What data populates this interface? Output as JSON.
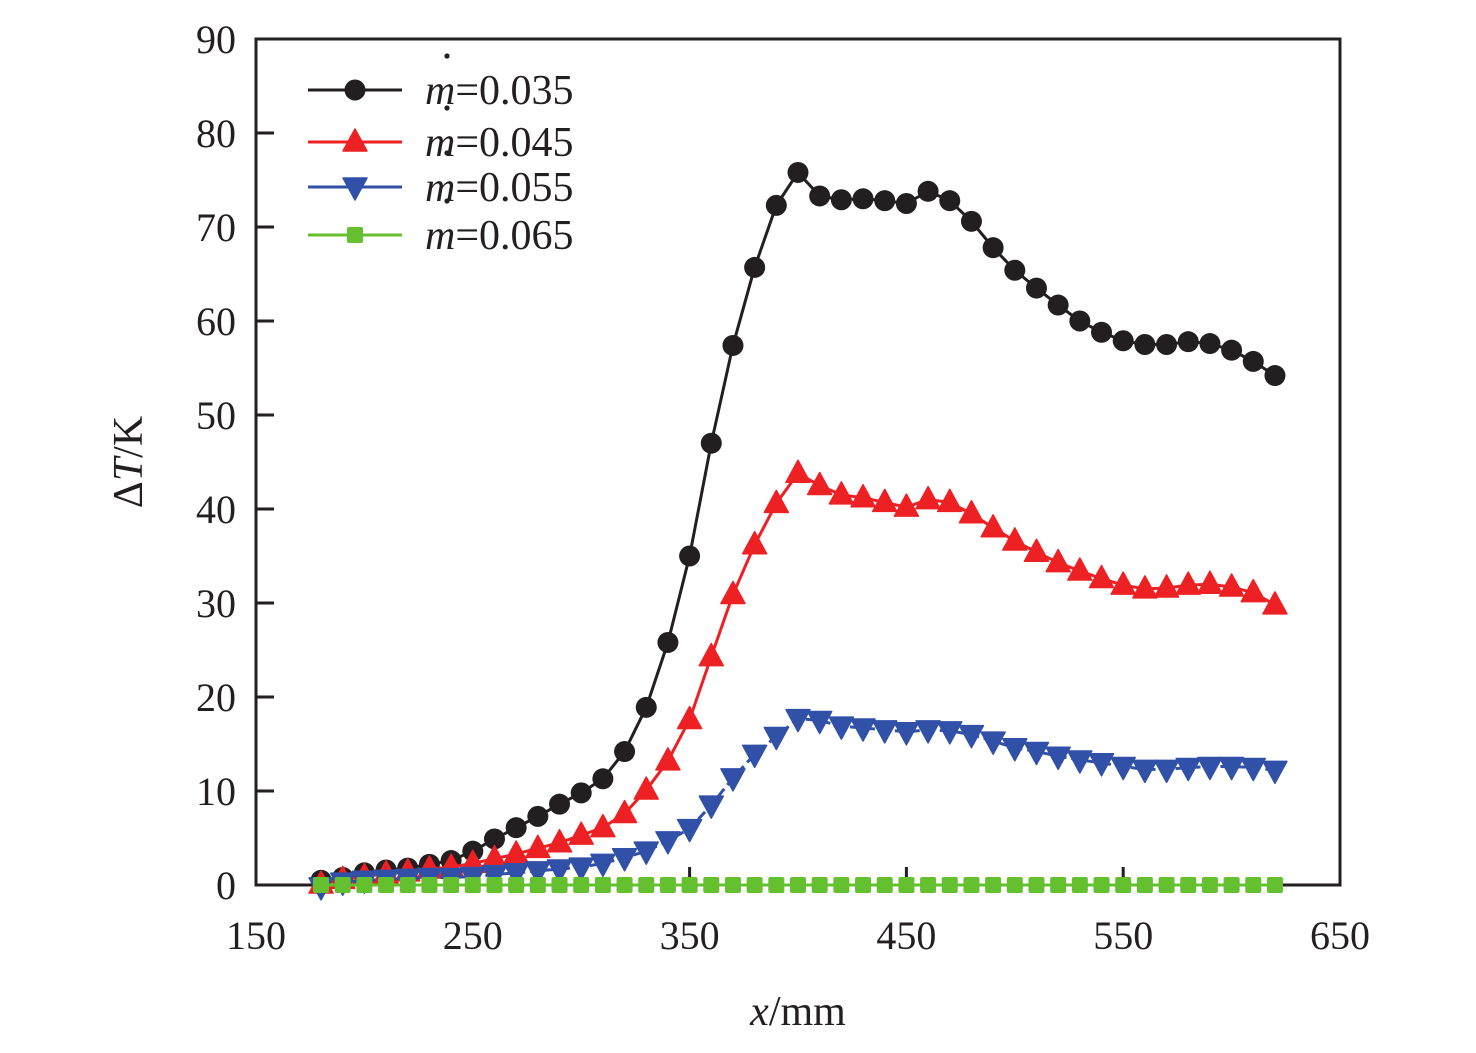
{
  "chart_data": {
    "type": "line",
    "title": "",
    "xlabel": {
      "var": "x",
      "unit": "/mm"
    },
    "ylabel": {
      "prefix": "Δ",
      "var": "T",
      "unit": "/K"
    },
    "xlim": [
      150,
      650
    ],
    "ylim": [
      0,
      90
    ],
    "xticks": [
      150,
      250,
      350,
      450,
      550,
      650
    ],
    "yticks": [
      0,
      10,
      20,
      30,
      40,
      50,
      60,
      70,
      80,
      90
    ],
    "grid": false,
    "legend_position": "top-left",
    "x": [
      180,
      190,
      200,
      210,
      220,
      230,
      240,
      250,
      260,
      270,
      280,
      290,
      300,
      310,
      320,
      330,
      340,
      350,
      360,
      370,
      380,
      390,
      400,
      410,
      420,
      430,
      440,
      450,
      460,
      470,
      480,
      490,
      500,
      510,
      520,
      530,
      540,
      550,
      560,
      570,
      580,
      590,
      600,
      610,
      620
    ],
    "series": [
      {
        "name": "m=0.035",
        "legend_var": "m",
        "legend_value": "=0.035",
        "color": "#231f20",
        "marker": "circle",
        "line": "solid",
        "values": [
          0.5,
          0.8,
          1.3,
          1.6,
          1.8,
          2.2,
          2.6,
          3.6,
          4.9,
          6.1,
          7.3,
          8.6,
          9.8,
          11.3,
          14.2,
          18.9,
          25.8,
          35.0,
          47.0,
          57.4,
          65.7,
          72.3,
          75.8,
          73.3,
          72.9,
          73.0,
          72.8,
          72.5,
          73.8,
          72.8,
          70.6,
          67.8,
          65.4,
          63.5,
          61.7,
          60.0,
          58.8,
          57.9,
          57.5,
          57.5,
          57.8,
          57.6,
          56.9,
          55.7,
          54.2
        ]
      },
      {
        "name": "m=0.045",
        "legend_var": "m",
        "legend_value": "=0.045",
        "color": "#ed2024",
        "marker": "triangle-up",
        "line": "solid",
        "values": [
          0.1,
          0.6,
          0.9,
          1.2,
          1.4,
          1.7,
          1.9,
          2.3,
          2.8,
          3.3,
          3.9,
          4.5,
          5.3,
          6.1,
          7.6,
          10.1,
          13.2,
          17.6,
          24.3,
          30.9,
          36.2,
          40.6,
          43.8,
          42.5,
          41.5,
          41.2,
          40.7,
          40.2,
          41.0,
          40.7,
          39.5,
          38.0,
          36.6,
          35.4,
          34.3,
          33.4,
          32.6,
          31.9,
          31.5,
          31.6,
          31.9,
          32.0,
          31.7,
          31.1,
          29.8
        ]
      },
      {
        "name": "m=0.055",
        "legend_var": "m",
        "legend_value": "=0.055",
        "color": "#3150a7",
        "marker": "triangle-down",
        "line": "dashed",
        "values": [
          -0.2,
          0.3,
          0.5,
          0.6,
          0.7,
          0.8,
          0.8,
          0.9,
          1.1,
          1.3,
          1.5,
          1.7,
          1.9,
          2.3,
          2.9,
          3.6,
          4.7,
          6.0,
          8.5,
          11.4,
          13.9,
          15.8,
          17.7,
          17.5,
          16.9,
          16.7,
          16.5,
          16.3,
          16.5,
          16.4,
          16.0,
          15.3,
          14.6,
          14.2,
          13.7,
          13.3,
          13.0,
          12.6,
          12.3,
          12.3,
          12.5,
          12.6,
          12.6,
          12.5,
          12.2
        ]
      },
      {
        "name": "m=0.065",
        "legend_var": "m",
        "legend_value": "=0.065",
        "color": "#65c02f",
        "marker": "square",
        "line": "solid",
        "values": [
          0,
          0,
          0,
          0,
          0,
          0,
          0,
          0,
          0,
          0,
          0,
          0,
          0,
          0,
          0,
          0,
          0,
          0,
          0,
          0,
          0,
          0,
          0,
          0,
          0,
          0,
          0,
          0,
          0,
          0,
          0,
          0,
          0,
          0,
          0,
          0,
          0,
          0,
          0,
          0,
          0,
          0,
          0,
          0,
          0
        ]
      }
    ]
  }
}
